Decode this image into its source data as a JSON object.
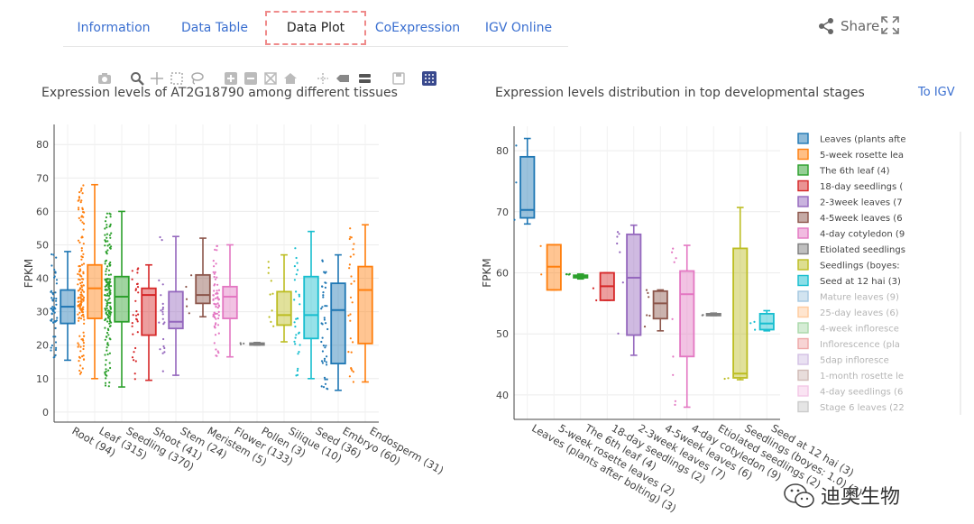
{
  "tabs": [
    {
      "label": "Information",
      "active": false
    },
    {
      "label": "Data Table",
      "active": false
    },
    {
      "label": "Data Plot",
      "active": true
    },
    {
      "label": "CoExpression",
      "active": false
    },
    {
      "label": "IGV Online",
      "active": false
    }
  ],
  "share_label": "Share",
  "to_igv_label": "To IGV",
  "toolbar_icons": [
    "camera-icon",
    "zoom-icon",
    "pan-icon",
    "box-select-icon",
    "lasso-icon",
    "zoom-in-icon",
    "zoom-out-icon",
    "autoscale-icon",
    "home-icon",
    "spike-lines-icon",
    "hover-closest-icon",
    "hover-compare-icon",
    "save-icon",
    "plotly-logo-icon"
  ],
  "colors": {
    "tab_active_border": "#ef8b8b",
    "link": "#3a6fd0",
    "palette": [
      "#1f77b4",
      "#ff7f0e",
      "#2ca02c",
      "#d62728",
      "#9467bd",
      "#8c564b",
      "#e377c2",
      "#7f7f7f",
      "#bcbd22",
      "#17becf"
    ]
  },
  "chart_data": [
    {
      "type": "box",
      "title": "Expression levels of AT2G18790 among different tissues",
      "ylabel": "FPKM",
      "ylim": [
        -3,
        86
      ],
      "yticks": [
        0,
        10,
        20,
        30,
        40,
        50,
        60,
        70,
        80
      ],
      "grid": true,
      "categories": [
        "Root (94)",
        "Leaf (315)",
        "Seedling (370)",
        "Shoot (41)",
        "Stem (24)",
        "Meristem (5)",
        "Flower (133)",
        "Pollen (3)",
        "Silique (10)",
        "Seed (36)",
        "Embryo (60)",
        "Endosperm (31)"
      ],
      "boxes": [
        {
          "min": 15.5,
          "q1": 26.5,
          "median": 31.5,
          "q3": 36.5,
          "max": 48,
          "color": "#1f77b4"
        },
        {
          "min": 10,
          "q1": 28,
          "median": 37,
          "q3": 44,
          "max": 68,
          "color": "#ff7f0e"
        },
        {
          "min": 7.5,
          "q1": 27,
          "median": 34.5,
          "q3": 40.5,
          "max": 60,
          "color": "#2ca02c"
        },
        {
          "min": 9.5,
          "q1": 23,
          "median": 35,
          "q3": 37,
          "max": 44,
          "color": "#d62728"
        },
        {
          "min": 11,
          "q1": 25,
          "median": 27,
          "q3": 36,
          "max": 52.5,
          "color": "#9467bd"
        },
        {
          "min": 28.5,
          "q1": 32.5,
          "median": 35,
          "q3": 41,
          "max": 52,
          "color": "#8c564b"
        },
        {
          "min": 16.5,
          "q1": 28,
          "median": 34.5,
          "q3": 37.5,
          "max": 50,
          "color": "#e377c2"
        },
        {
          "min": 20,
          "q1": 20.2,
          "median": 20.4,
          "q3": 20.6,
          "max": 20.8,
          "color": "#7f7f7f"
        },
        {
          "min": 21,
          "q1": 26,
          "median": 29,
          "q3": 36,
          "max": 47,
          "color": "#bcbd22"
        },
        {
          "min": 10,
          "q1": 22,
          "median": 29,
          "q3": 40.5,
          "max": 54,
          "color": "#17becf"
        },
        {
          "min": 6.5,
          "q1": 14.5,
          "median": 30.5,
          "q3": 38.5,
          "max": 47,
          "color": "#1f77b4"
        },
        {
          "min": 9,
          "q1": 20.5,
          "median": 36.5,
          "q3": 43.5,
          "max": 56,
          "color": "#ff7f0e"
        }
      ]
    },
    {
      "type": "box",
      "title": "Expression levels distribution in top developmental stages",
      "ylabel": "FPKM",
      "ylim": [
        36,
        84
      ],
      "yticks": [
        40,
        50,
        60,
        70,
        80
      ],
      "grid": true,
      "legend": "right",
      "categories": [
        "Leaves (plants after bolting) (3)",
        "5-week rosette leaves (2)",
        "The 6th leaf (4)",
        "18-day seedlings (2)",
        "2-3week leaves (7)",
        "4-5week leaves (6)",
        "4-day cotyledon (9)",
        "Etiolated seedlings (2)",
        "Seedlings (boyes: 1.0) (2)",
        "Seed at 12 hai (3)"
      ],
      "boxes": [
        {
          "min": 68,
          "q1": 69,
          "median": 70.3,
          "q3": 79,
          "max": 82,
          "color": "#1f77b4"
        },
        {
          "min": 57.2,
          "q1": 57.2,
          "median": 61,
          "q3": 64.6,
          "max": 64.6,
          "color": "#ff7f0e"
        },
        {
          "min": 59,
          "q1": 59.2,
          "median": 59.4,
          "q3": 59.6,
          "max": 59.8,
          "color": "#2ca02c"
        },
        {
          "min": 55.5,
          "q1": 55.5,
          "median": 57.8,
          "q3": 60,
          "max": 60,
          "color": "#d62728"
        },
        {
          "min": 46.5,
          "q1": 49.8,
          "median": 59.2,
          "q3": 66.3,
          "max": 67.8,
          "color": "#9467bd"
        },
        {
          "min": 50.5,
          "q1": 52.5,
          "median": 55,
          "q3": 57,
          "max": 57.2,
          "color": "#8c564b"
        },
        {
          "min": 38,
          "q1": 46.3,
          "median": 56.5,
          "q3": 60.3,
          "max": 64.5,
          "color": "#e377c2"
        },
        {
          "min": 53,
          "q1": 53.1,
          "median": 53.2,
          "q3": 53.3,
          "max": 53.4,
          "color": "#7f7f7f"
        },
        {
          "min": 42.5,
          "q1": 42.8,
          "median": 43.5,
          "q3": 64,
          "max": 70.7,
          "color": "#bcbd22"
        },
        {
          "min": 50.5,
          "q1": 50.7,
          "median": 51.7,
          "q3": 53.3,
          "max": 53.8,
          "color": "#17becf"
        }
      ],
      "legend_entries": [
        {
          "label": "Leaves (plants afte",
          "color": "#1f77b4",
          "faded": false
        },
        {
          "label": "5-week rosette lea",
          "color": "#ff7f0e",
          "faded": false
        },
        {
          "label": "The 6th leaf (4)",
          "color": "#2ca02c",
          "faded": false
        },
        {
          "label": "18-day seedlings (",
          "color": "#d62728",
          "faded": false
        },
        {
          "label": "2-3week leaves (7",
          "color": "#9467bd",
          "faded": false
        },
        {
          "label": "4-5week leaves (6",
          "color": "#8c564b",
          "faded": false
        },
        {
          "label": "4-day cotyledon (9",
          "color": "#e377c2",
          "faded": false
        },
        {
          "label": "Etiolated seedlings",
          "color": "#7f7f7f",
          "faded": false
        },
        {
          "label": "Seedlings (boyes:",
          "color": "#bcbd22",
          "faded": false
        },
        {
          "label": "Seed at 12 hai (3)",
          "color": "#17becf",
          "faded": false
        },
        {
          "label": "Mature leaves (9)",
          "color": "#1f77b4",
          "faded": true
        },
        {
          "label": "25-day leaves (6)",
          "color": "#ff7f0e",
          "faded": true
        },
        {
          "label": "4-week infloresce",
          "color": "#2ca02c",
          "faded": true
        },
        {
          "label": "Inflorescence (pla",
          "color": "#d62728",
          "faded": true
        },
        {
          "label": "5dap infloresce",
          "color": "#9467bd",
          "faded": true
        },
        {
          "label": "1-month rosette le",
          "color": "#8c564b",
          "faded": true
        },
        {
          "label": "4-day seedlings (6",
          "color": "#e377c2",
          "faded": true
        },
        {
          "label": "Stage 6 leaves (22",
          "color": "#7f7f7f",
          "faded": true
        }
      ]
    }
  ],
  "watermark": "迪奥生物"
}
